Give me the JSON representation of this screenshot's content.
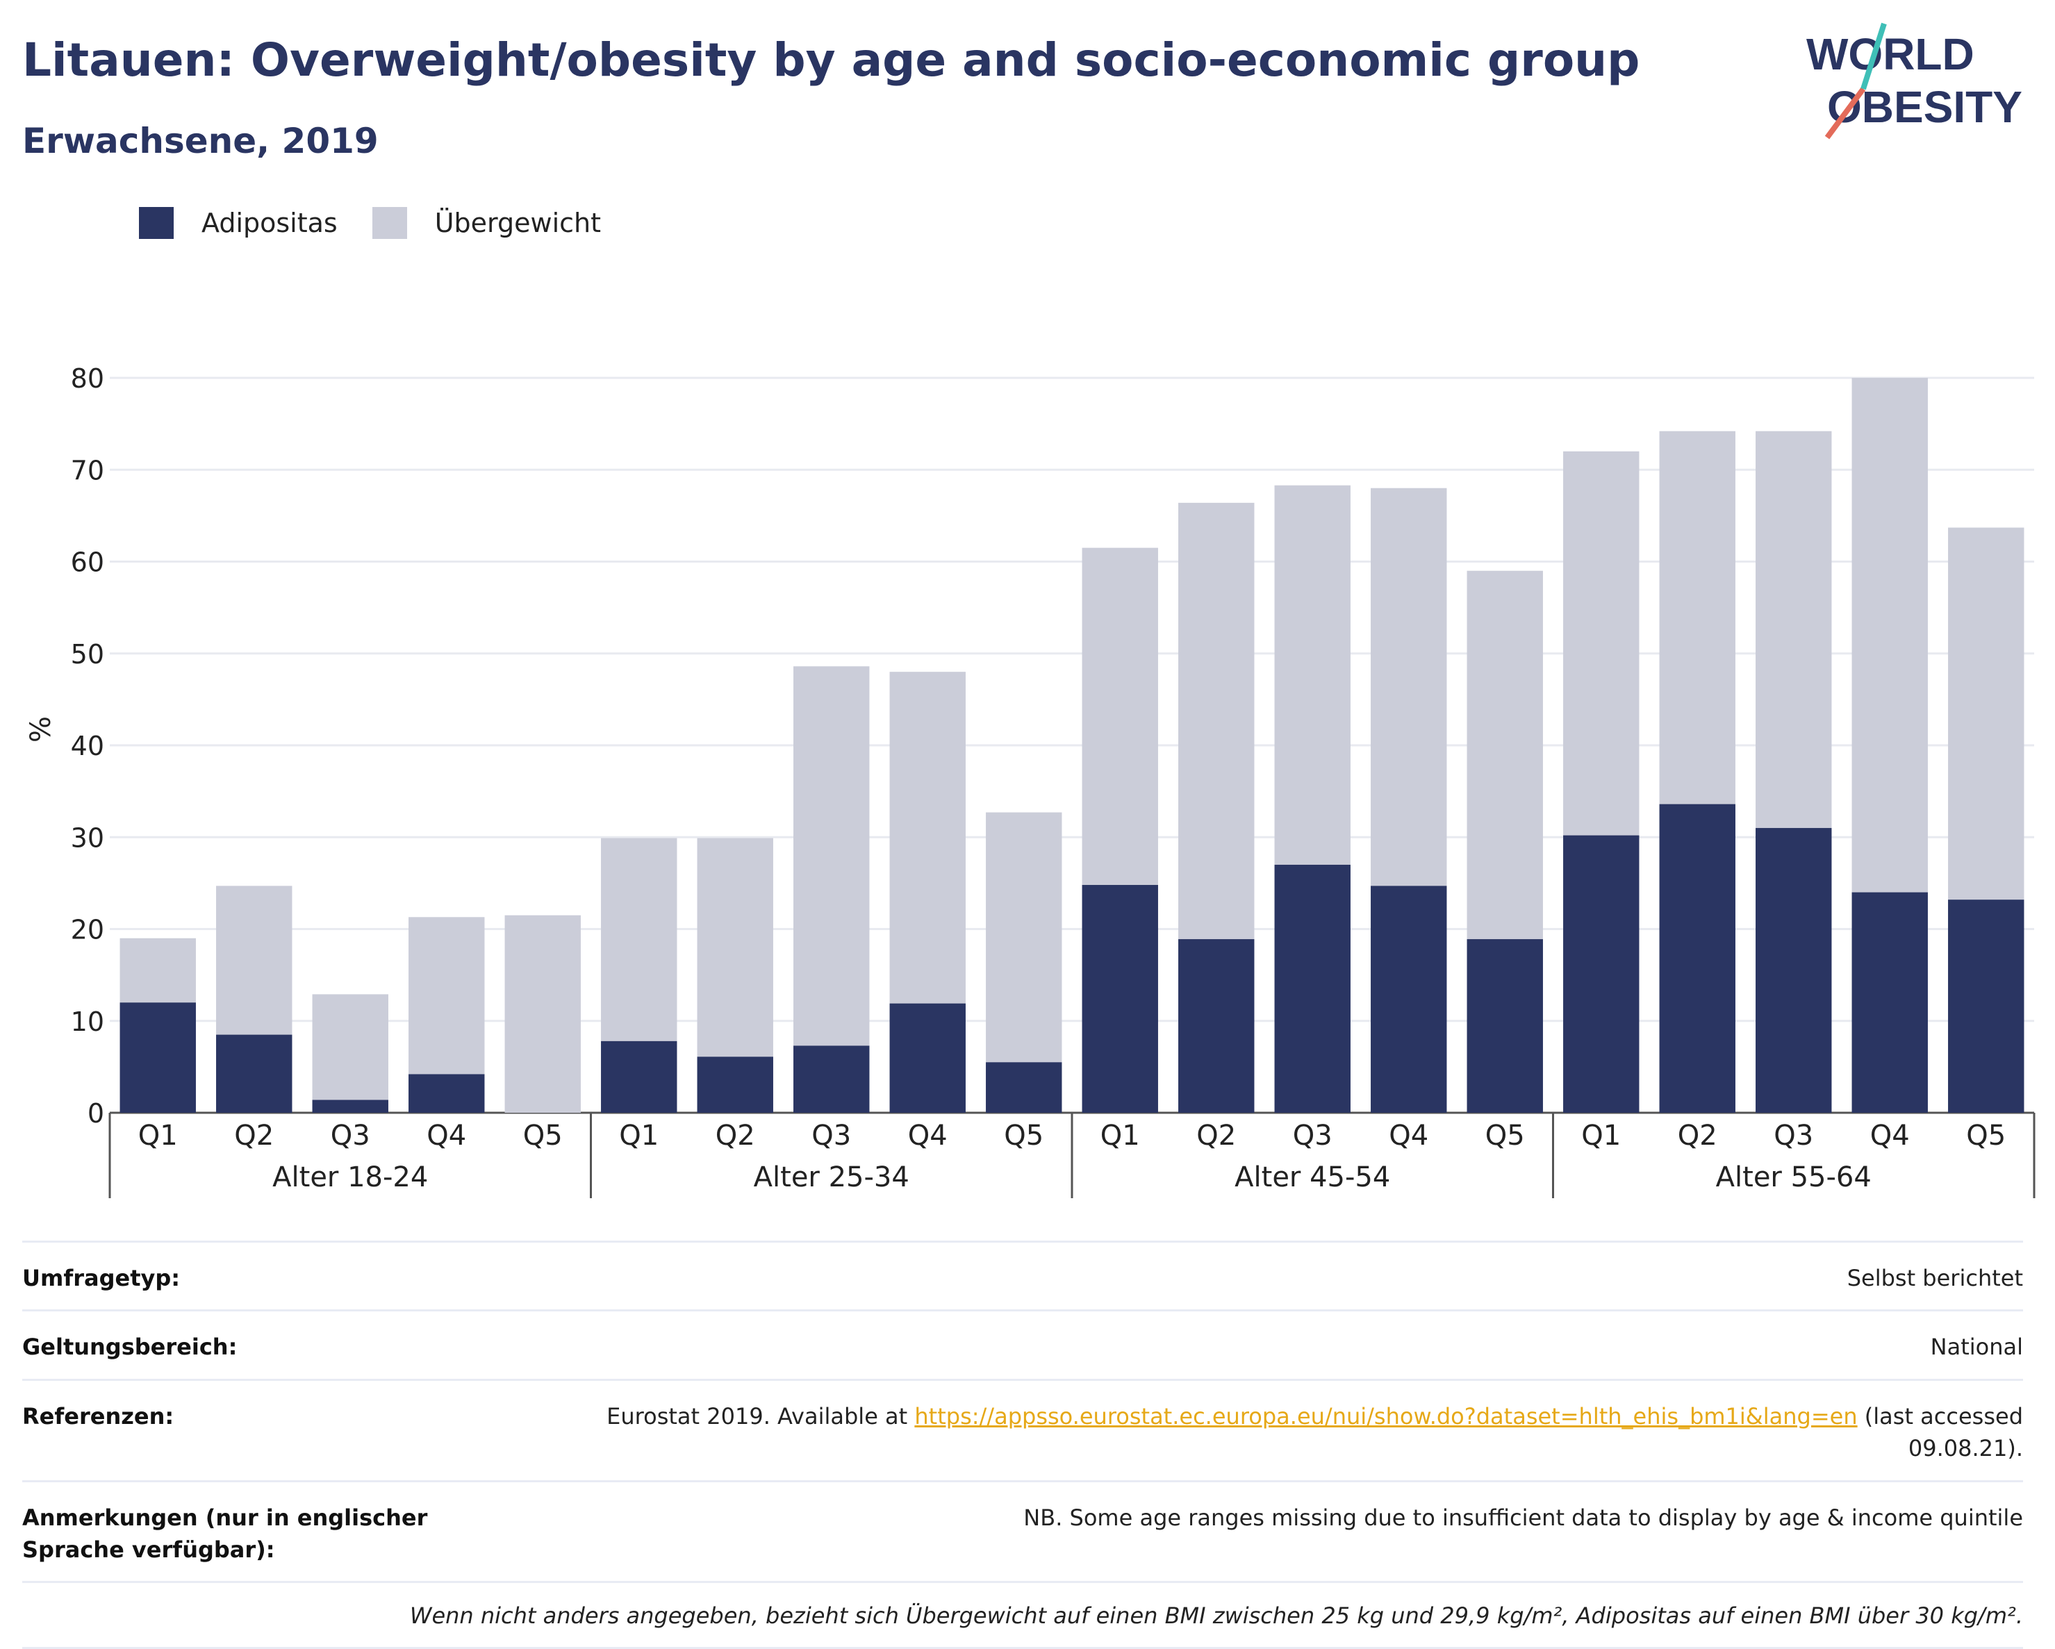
{
  "header": {
    "title": "Litauen: Overweight/obesity by age and socio-economic group",
    "subtitle": "Erwachsene, 2019"
  },
  "logo": {
    "line1": "WORLD",
    "line2": "OBESITY"
  },
  "legend": {
    "obesity_label": "Adipositas",
    "overweight_label": "Übergewicht"
  },
  "colors": {
    "obesity": "#2a3562",
    "overweight": "#cbcdd9",
    "title": "#2a3562",
    "link": "#e6a817"
  },
  "chart_data": {
    "type": "bar",
    "stacked": true,
    "ylabel": "%",
    "ylim": [
      0,
      80
    ],
    "yticks": [
      0,
      10,
      20,
      30,
      40,
      50,
      60,
      70,
      80
    ],
    "grid": true,
    "legend_position": "top-left",
    "groups": [
      {
        "label": "Alter 18-24",
        "categories": [
          "Q1",
          "Q2",
          "Q3",
          "Q4",
          "Q5"
        ],
        "obesity": [
          12,
          8.5,
          1.4,
          4.2,
          0
        ],
        "total": [
          19,
          24.7,
          12.9,
          21.3,
          21.5
        ]
      },
      {
        "label": "Alter 25-34",
        "categories": [
          "Q1",
          "Q2",
          "Q3",
          "Q4",
          "Q5"
        ],
        "obesity": [
          7.8,
          6.1,
          7.3,
          11.9,
          5.5
        ],
        "total": [
          29.9,
          29.9,
          48.6,
          48,
          32.7
        ]
      },
      {
        "label": "Alter 45-54",
        "categories": [
          "Q1",
          "Q2",
          "Q3",
          "Q4",
          "Q5"
        ],
        "obesity": [
          24.8,
          18.9,
          27,
          24.7,
          18.9
        ],
        "total": [
          61.5,
          66.4,
          68.3,
          68,
          59
        ]
      },
      {
        "label": "Alter 55-64",
        "categories": [
          "Q1",
          "Q2",
          "Q3",
          "Q4",
          "Q5"
        ],
        "obesity": [
          30.2,
          33.6,
          31,
          24,
          23.2
        ],
        "total": [
          72,
          74.2,
          74.2,
          80,
          63.7
        ]
      }
    ],
    "series": [
      {
        "name": "Adipositas",
        "color": "#2a3562"
      },
      {
        "name": "Übergewicht",
        "color": "#cbcdd9"
      }
    ]
  },
  "info": {
    "survey_key": "Umfragetyp:",
    "survey_val": "Selbst berichtet",
    "scope_key": "Geltungsbereich:",
    "scope_val": "National",
    "ref_key": "Referenzen:",
    "ref_prefix": "Eurostat 2019. Available at ",
    "ref_link": "https://appsso.eurostat.ec.europa.eu/nui/show.do?dataset=hlth_ehis_bm1i&lang=en",
    "ref_suffix": " (last accessed 09.08.21).",
    "notes_key": "Anmerkungen (nur in englischer Sprache verfügbar):",
    "notes_val": "NB. Some age ranges missing due to insufficient data to display by age & income quintile",
    "footnote": "Wenn nicht anders angegeben, bezieht sich Übergewicht auf einen BMI zwischen 25 kg und 29,9 kg/m², Adipositas auf einen BMI über 30 kg/m²."
  }
}
